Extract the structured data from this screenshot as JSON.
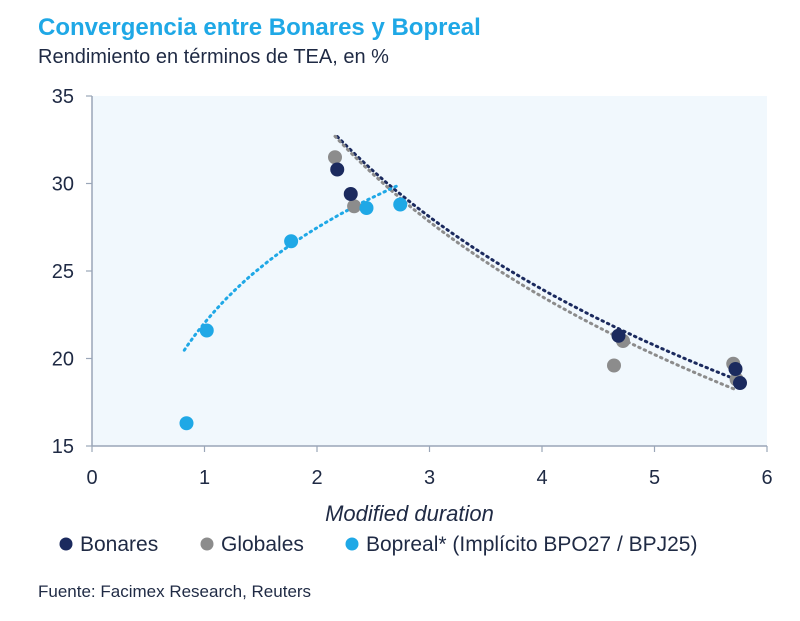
{
  "title": "Convergencia entre Bonares y Bopreal",
  "subtitle": "Rendimiento en términos de TEA, en %",
  "source": "Fuente: Facimex Research, Reuters",
  "colors": {
    "title": "#1fa8e6",
    "Bonares": "#1b2a5e",
    "Globales": "#8c8c8c",
    "Bopreal": "#1fa8e6",
    "plot_bg": "#f1f8fd"
  },
  "chart_data": {
    "type": "scatter",
    "xlabel": "Modified duration",
    "ylabel": "",
    "xlim": [
      0,
      6
    ],
    "ylim": [
      15,
      35
    ],
    "xticks": [
      "0",
      "1",
      "2",
      "3",
      "4",
      "5",
      "6"
    ],
    "yticks": [
      "15",
      "20",
      "25",
      "30",
      "35"
    ],
    "legend_position": "bottom",
    "series": [
      {
        "name": "Bonares",
        "color_key": "Bonares",
        "points": [
          [
            2.18,
            30.8
          ],
          [
            2.3,
            29.4
          ],
          [
            4.68,
            21.3
          ],
          [
            5.72,
            19.4
          ],
          [
            5.76,
            18.6
          ]
        ],
        "trend": {
          "type": "log",
          "a": 43.88,
          "b": -14.37,
          "from": 2.18,
          "to": 5.76
        }
      },
      {
        "name": "Globales",
        "color_key": "Globales",
        "points": [
          [
            2.16,
            31.5
          ],
          [
            2.33,
            28.7
          ],
          [
            4.64,
            19.6
          ],
          [
            4.72,
            21.0
          ],
          [
            5.7,
            19.7
          ],
          [
            5.73,
            18.8
          ]
        ],
        "trend": {
          "type": "log",
          "a": 44.14,
          "b": -14.86,
          "from": 2.16,
          "to": 5.73
        }
      },
      {
        "name": "Bopreal* (Implícito BPO27 / BPJ25)",
        "color_key": "Bopreal",
        "points": [
          [
            0.84,
            16.3
          ],
          [
            1.02,
            21.6
          ],
          [
            1.77,
            26.7
          ],
          [
            2.44,
            28.6
          ],
          [
            2.74,
            28.8
          ]
        ],
        "trend": {
          "type": "log",
          "a": 22.03,
          "b": 7.85,
          "from": 0.82,
          "to": 2.72
        }
      }
    ]
  }
}
